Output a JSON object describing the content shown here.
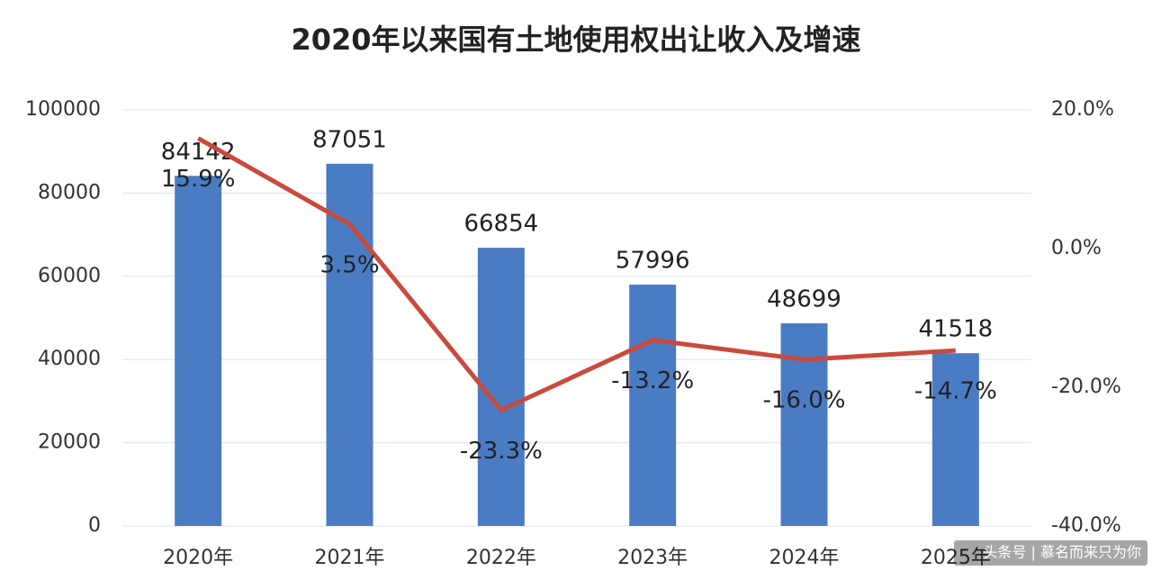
{
  "chart_data": {
    "type": "bar",
    "title": "2020年以来国有土地使用权出让收入及增速",
    "categories": [
      "2020年",
      "2021年",
      "2022年",
      "2023年",
      "2024年",
      "2025年"
    ],
    "series": [
      {
        "type": "bar",
        "color": "#4a7cc4",
        "values": [
          84142,
          87051,
          66854,
          57996,
          48699,
          41518
        ]
      },
      {
        "type": "line",
        "axis": "y2",
        "color": "#c94a3c",
        "values": [
          15.9,
          3.5,
          -23.3,
          -13.2,
          -16.0,
          -14.7
        ],
        "value_labels": [
          "15.9%",
          "3.5%",
          "-23.3%",
          "-13.2%",
          "-16.0%",
          "-14.7%"
        ]
      }
    ],
    "ylim": [
      0,
      100000
    ],
    "yticks": [
      0,
      20000,
      40000,
      60000,
      80000,
      100000
    ],
    "y2lim": [
      -40,
      20
    ],
    "y2ticks": [
      {
        "value": -40,
        "label": "-40.0%"
      },
      {
        "value": -20,
        "label": "-20.0%"
      },
      {
        "value": 0,
        "label": "0.0%"
      },
      {
        "value": 20,
        "label": "20.0%"
      }
    ],
    "grid": true,
    "watermark": "头条号 | 慕名而来只为你"
  }
}
